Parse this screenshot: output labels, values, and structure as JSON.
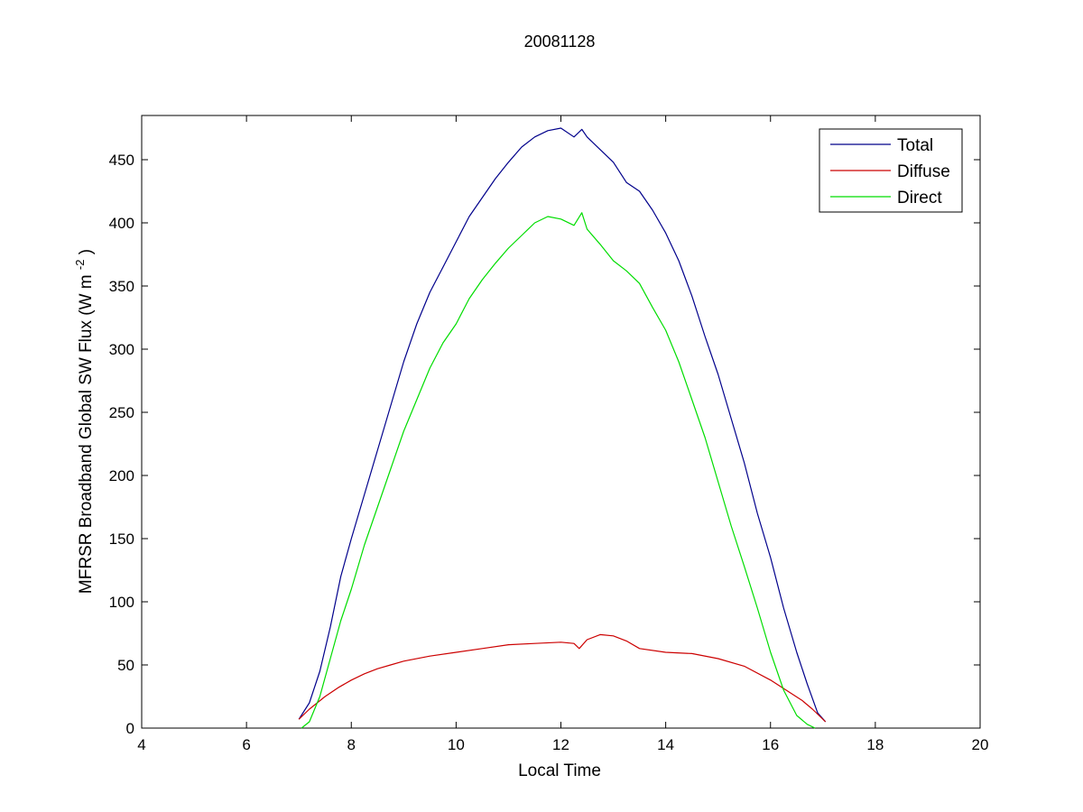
{
  "chart_data": {
    "type": "line",
    "title": "20081128",
    "xlabel": "Local Time",
    "ylabel_main": "MFRSR Broadband Global SW Flux (W m",
    "ylabel_sup": "-2",
    "ylabel_end": ")",
    "xlim": [
      4,
      20
    ],
    "ylim": [
      0,
      485
    ],
    "xticks": [
      4,
      6,
      8,
      10,
      12,
      14,
      16,
      18,
      20
    ],
    "yticks": [
      0,
      50,
      100,
      150,
      200,
      250,
      300,
      350,
      400,
      450
    ],
    "grid": false,
    "legend_position": "top-right",
    "series": [
      {
        "name": "Total",
        "color": "#00008b",
        "x": [
          7.0,
          7.2,
          7.4,
          7.6,
          7.8,
          8.0,
          8.25,
          8.5,
          8.75,
          9.0,
          9.25,
          9.5,
          9.75,
          10.0,
          10.25,
          10.5,
          10.75,
          11.0,
          11.25,
          11.5,
          11.75,
          12.0,
          12.25,
          12.4,
          12.5,
          12.75,
          13.0,
          13.25,
          13.5,
          13.75,
          14.0,
          14.25,
          14.5,
          14.75,
          15.0,
          15.25,
          15.5,
          15.75,
          16.0,
          16.25,
          16.5,
          16.7,
          16.9,
          17.05
        ],
        "y": [
          7,
          20,
          45,
          80,
          120,
          150,
          185,
          220,
          255,
          290,
          320,
          345,
          365,
          385,
          405,
          420,
          435,
          448,
          460,
          468,
          473,
          475,
          468,
          474,
          468,
          458,
          448,
          432,
          425,
          410,
          392,
          370,
          342,
          310,
          280,
          245,
          210,
          170,
          135,
          95,
          60,
          35,
          12,
          5
        ]
      },
      {
        "name": "Diffuse",
        "color": "#cc0000",
        "x": [
          7.0,
          7.2,
          7.5,
          7.75,
          8.0,
          8.25,
          8.5,
          8.75,
          9.0,
          9.5,
          10.0,
          10.5,
          11.0,
          11.5,
          12.0,
          12.25,
          12.35,
          12.5,
          12.75,
          13.0,
          13.25,
          13.5,
          14.0,
          14.5,
          15.0,
          15.5,
          16.0,
          16.3,
          16.6,
          16.8,
          17.05
        ],
        "y": [
          7,
          15,
          25,
          32,
          38,
          43,
          47,
          50,
          53,
          57,
          60,
          63,
          66,
          67,
          68,
          67,
          63,
          70,
          74,
          73,
          69,
          63,
          60,
          59,
          55,
          49,
          38,
          30,
          22,
          15,
          5
        ]
      },
      {
        "name": "Direct",
        "color": "#00dd00",
        "x": [
          7.05,
          7.2,
          7.4,
          7.6,
          7.8,
          8.0,
          8.25,
          8.5,
          8.75,
          9.0,
          9.25,
          9.5,
          9.75,
          10.0,
          10.25,
          10.5,
          10.75,
          11.0,
          11.25,
          11.5,
          11.75,
          12.0,
          12.25,
          12.4,
          12.5,
          12.75,
          13.0,
          13.25,
          13.5,
          13.75,
          14.0,
          14.25,
          14.5,
          14.75,
          15.0,
          15.25,
          15.5,
          15.75,
          16.0,
          16.25,
          16.5,
          16.7,
          16.85
        ],
        "y": [
          0,
          5,
          25,
          55,
          85,
          110,
          145,
          175,
          205,
          235,
          260,
          285,
          305,
          320,
          340,
          355,
          368,
          380,
          390,
          400,
          405,
          403,
          398,
          408,
          395,
          383,
          370,
          362,
          352,
          333,
          315,
          290,
          260,
          230,
          195,
          160,
          128,
          95,
          60,
          30,
          10,
          3,
          0
        ]
      }
    ]
  }
}
